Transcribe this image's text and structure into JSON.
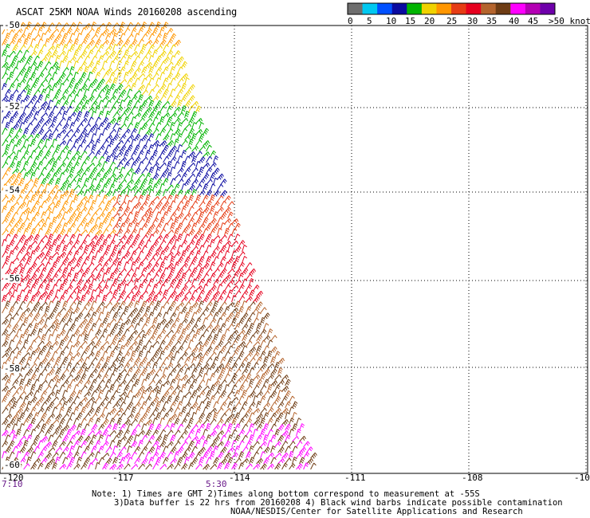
{
  "title": "ASCAT 25KM NOAA Winds 20160208 ascending",
  "legend": {
    "labels": [
      "0",
      "5",
      "10",
      "15",
      "20",
      "25",
      "30",
      "35",
      "40",
      "45",
      ">50 knots"
    ],
    "colors": [
      "#6e6e6e",
      "#00c8f0",
      "#0050ff",
      "#0a0aa0",
      "#00b400",
      "#f0d200",
      "#ff9600",
      "#e63c14",
      "#e6001e",
      "#b4642d",
      "#6e3c14",
      "#ff00ff",
      "#b400b4",
      "#6e00aa"
    ]
  },
  "map": {
    "lat_labels": [
      "-50",
      "-52",
      "-54",
      "-56",
      "-58",
      "-60"
    ],
    "lon_labels": [
      "-120",
      "-117",
      "-114",
      "-111",
      "-108",
      "-10"
    ],
    "times": [
      "7:10",
      "5:30"
    ],
    "lon_range": [
      -120,
      -105
    ],
    "lat_range": [
      -60,
      -50
    ]
  },
  "notes": [
    "Note: 1) Times are GMT 2)Times along bottom correspond to measurement at -55S",
    "3)Data buffer is 22 hrs from 20160208 4) Black wind barbs indicate possible contamination",
    "NOAA/NESDIS/Center for Satellite Applications and Research"
  ]
}
